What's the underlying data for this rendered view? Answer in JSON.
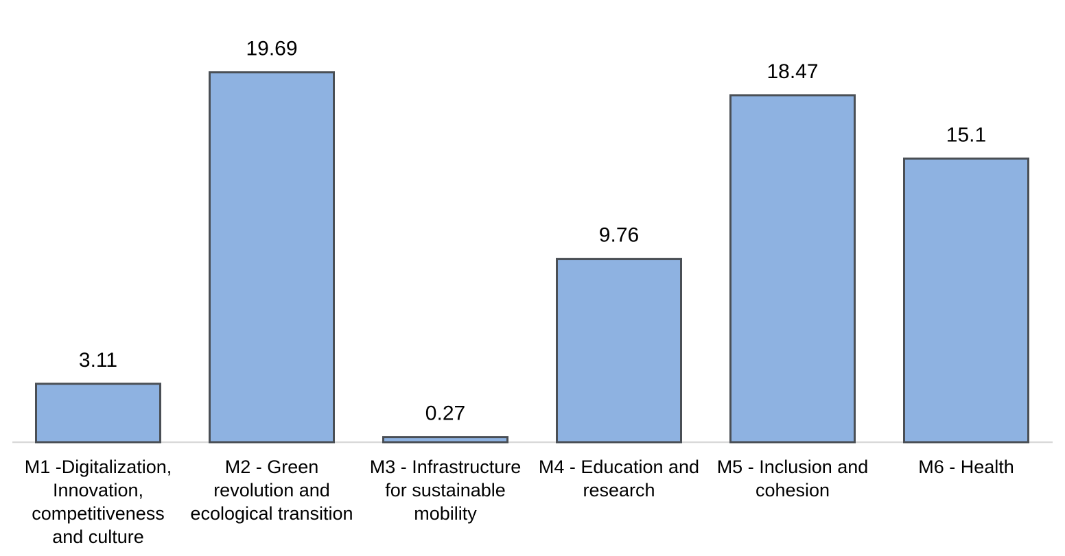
{
  "chart_data": {
    "type": "bar",
    "categories": [
      [
        "M1 -Digitalization,",
        "Innovation,",
        "competitiveness",
        "and culture"
      ],
      [
        "M2 - Green",
        "revolution and",
        "ecological transition"
      ],
      [
        "M3 - Infrastructure",
        "for sustainable",
        "mobility"
      ],
      [
        "M4 - Education and",
        "research"
      ],
      [
        "M5 - Inclusion and",
        "cohesion"
      ],
      [
        "M6 - Health"
      ]
    ],
    "values": [
      3.11,
      19.69,
      0.27,
      9.76,
      18.47,
      15.1
    ],
    "data_labels": [
      "3.11",
      "19.69",
      "0.27",
      "9.76",
      "18.47",
      "15.1"
    ],
    "title": "",
    "xlabel": "",
    "ylabel": "",
    "ylim": [
      0,
      22
    ],
    "grid": false,
    "legend": "none",
    "colors": {
      "bar_fill": "#8EB2E1",
      "bar_stroke": "#4A4F55",
      "axis": "#D9D9D9"
    }
  }
}
